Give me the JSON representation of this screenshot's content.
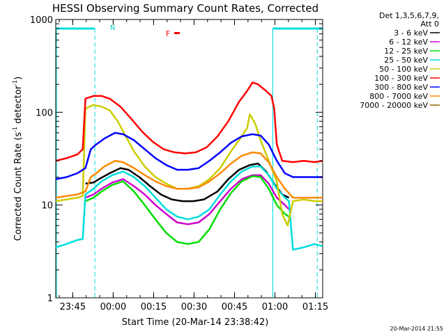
{
  "chart_data": {
    "type": "line",
    "title": "HESSI Observing Summary Count Rates, Corrected",
    "xlabel": "Start Time (20-Mar-14 23:38:42)",
    "ylabel_main": "Corrected Count Rate (s",
    "ylabel_sup1": "-1",
    "ylabel_mid": " detector",
    "ylabel_sup2": "-1",
    "ylabel_end": ")",
    "y_scale": "log",
    "ylim": [
      1,
      1000
    ],
    "x_range_minutes": [
      0,
      99
    ],
    "xtick_labels": [
      "23:45",
      "00:00",
      "00:15",
      "00:30",
      "00:45",
      "01:00",
      "01:15"
    ],
    "xtick_minutes": [
      6.3,
      21.3,
      36.3,
      51.3,
      66.3,
      81.3,
      96.3
    ],
    "ytick_labels": [
      "1",
      "10",
      "100",
      "1000"
    ],
    "ytick_values": [
      1,
      10,
      100,
      1000
    ],
    "legend_header_1": "Det 1,3,5,6,7,9,",
    "legend_header_2": "Att 0",
    "legend_position": "right",
    "timestamp": "20-Mar-2014 21:55",
    "flag_labels": {
      "N": "N",
      "F": "F"
    },
    "night_intervals": [
      [
        0,
        14.5
      ],
      [
        80.5,
        99
      ]
    ],
    "dashed_lines_minutes": [
      14.5,
      80.5,
      97
    ],
    "series": [
      {
        "name": "3 - 6 keV",
        "color": "#000000",
        "points": [
          [
            11,
            17
          ],
          [
            14,
            17.5
          ],
          [
            16,
            19
          ],
          [
            20,
            22
          ],
          [
            24,
            25
          ],
          [
            27,
            24
          ],
          [
            31,
            20
          ],
          [
            35,
            16
          ],
          [
            39,
            13
          ],
          [
            43,
            11.5
          ],
          [
            47,
            11
          ],
          [
            51,
            11
          ],
          [
            55,
            11.5
          ],
          [
            60,
            14
          ],
          [
            64,
            19
          ],
          [
            68,
            24
          ],
          [
            72,
            27
          ],
          [
            75,
            28
          ],
          [
            78,
            23
          ],
          [
            81,
            17
          ],
          [
            84,
            13
          ],
          [
            86.5,
            12
          ]
        ]
      },
      {
        "name": "6 - 12 keV",
        "color": "#cc00cc",
        "points": [
          [
            11,
            12
          ],
          [
            14,
            13
          ],
          [
            17,
            15
          ],
          [
            21,
            17.5
          ],
          [
            25,
            19
          ],
          [
            29,
            16
          ],
          [
            33,
            13
          ],
          [
            37,
            10
          ],
          [
            41,
            8
          ],
          [
            45,
            6.5
          ],
          [
            49,
            6.2
          ],
          [
            53,
            6.5
          ],
          [
            57,
            8
          ],
          [
            61,
            11
          ],
          [
            65,
            15
          ],
          [
            69,
            19
          ],
          [
            73,
            21
          ],
          [
            76,
            21
          ],
          [
            79,
            17
          ],
          [
            82,
            12
          ],
          [
            85,
            10
          ],
          [
            86.5,
            9
          ]
        ]
      },
      {
        "name": "12 - 25 keV",
        "color": "#00dd00",
        "points": [
          [
            11,
            11
          ],
          [
            14,
            12
          ],
          [
            17,
            14
          ],
          [
            21,
            16.5
          ],
          [
            25,
            18
          ],
          [
            29,
            14
          ],
          [
            33,
            10
          ],
          [
            37,
            7
          ],
          [
            41,
            5
          ],
          [
            45,
            4
          ],
          [
            49,
            3.8
          ],
          [
            53,
            4
          ],
          [
            57,
            5.5
          ],
          [
            61,
            9
          ],
          [
            65,
            13.5
          ],
          [
            69,
            18
          ],
          [
            73,
            20.5
          ],
          [
            76,
            20
          ],
          [
            79,
            15
          ],
          [
            82,
            10
          ],
          [
            85,
            8
          ],
          [
            86.5,
            7.5
          ]
        ]
      },
      {
        "name": "25 - 50 keV",
        "color": "#00dddd",
        "points": [
          [
            0,
            3.5
          ],
          [
            4,
            3.8
          ],
          [
            8,
            4.2
          ],
          [
            10,
            4.3
          ],
          [
            11,
            13
          ],
          [
            14,
            15
          ],
          [
            17,
            18
          ],
          [
            21,
            21
          ],
          [
            25,
            23
          ],
          [
            29,
            20
          ],
          [
            33,
            16
          ],
          [
            37,
            12
          ],
          [
            41,
            9
          ],
          [
            45,
            7.5
          ],
          [
            49,
            7
          ],
          [
            53,
            7.5
          ],
          [
            57,
            9
          ],
          [
            61,
            13
          ],
          [
            65,
            18
          ],
          [
            69,
            23
          ],
          [
            73,
            26
          ],
          [
            76,
            26
          ],
          [
            79,
            21
          ],
          [
            82,
            15
          ],
          [
            85,
            12
          ],
          [
            86.5,
            11
          ],
          [
            88,
            3.3
          ],
          [
            92,
            3.5
          ],
          [
            96,
            3.8
          ],
          [
            99,
            3.6
          ]
        ]
      },
      {
        "name": "50 - 100 keV",
        "color": "#cccc00",
        "points": [
          [
            0,
            11
          ],
          [
            4,
            11.5
          ],
          [
            8,
            12
          ],
          [
            10,
            12.5
          ],
          [
            11,
            110
          ],
          [
            14,
            120
          ],
          [
            17,
            115
          ],
          [
            20,
            105
          ],
          [
            23,
            80
          ],
          [
            26,
            55
          ],
          [
            29,
            38
          ],
          [
            33,
            26
          ],
          [
            37,
            20
          ],
          [
            41,
            17
          ],
          [
            45,
            15
          ],
          [
            49,
            15
          ],
          [
            53,
            16
          ],
          [
            57,
            19
          ],
          [
            61,
            25
          ],
          [
            65,
            38
          ],
          [
            69,
            55
          ],
          [
            71,
            68
          ],
          [
            72,
            95
          ],
          [
            74,
            75
          ],
          [
            76,
            50
          ],
          [
            79,
            30
          ],
          [
            82,
            18
          ],
          [
            84,
            8
          ],
          [
            86,
            6
          ],
          [
            88,
            11
          ],
          [
            92,
            11.5
          ],
          [
            96,
            11
          ],
          [
            99,
            11
          ]
        ]
      },
      {
        "name": "100 - 300 keV",
        "color": "#ff0000",
        "points": [
          [
            0,
            30
          ],
          [
            4,
            32
          ],
          [
            8,
            35
          ],
          [
            10,
            40
          ],
          [
            11,
            140
          ],
          [
            14,
            150
          ],
          [
            17,
            150
          ],
          [
            20,
            140
          ],
          [
            24,
            115
          ],
          [
            28,
            85
          ],
          [
            32,
            62
          ],
          [
            36,
            48
          ],
          [
            40,
            40
          ],
          [
            44,
            37
          ],
          [
            48,
            36
          ],
          [
            52,
            37
          ],
          [
            56,
            42
          ],
          [
            60,
            55
          ],
          [
            64,
            80
          ],
          [
            68,
            130
          ],
          [
            71,
            170
          ],
          [
            73,
            210
          ],
          [
            75,
            200
          ],
          [
            78,
            170
          ],
          [
            80,
            150
          ],
          [
            81,
            110
          ],
          [
            82,
            45
          ],
          [
            84,
            30
          ],
          [
            88,
            29
          ],
          [
            92,
            30
          ],
          [
            96,
            29
          ],
          [
            99,
            30
          ]
        ]
      },
      {
        "name": "300 - 800 keV",
        "color": "#0000ff",
        "points": [
          [
            0,
            19
          ],
          [
            4,
            20
          ],
          [
            8,
            22
          ],
          [
            11,
            25
          ],
          [
            13,
            40
          ],
          [
            15,
            45
          ],
          [
            18,
            52
          ],
          [
            22,
            60
          ],
          [
            25,
            58
          ],
          [
            29,
            50
          ],
          [
            33,
            40
          ],
          [
            37,
            32
          ],
          [
            41,
            27
          ],
          [
            45,
            24
          ],
          [
            49,
            24
          ],
          [
            53,
            25
          ],
          [
            57,
            30
          ],
          [
            61,
            37
          ],
          [
            65,
            47
          ],
          [
            69,
            55
          ],
          [
            73,
            58
          ],
          [
            76,
            56
          ],
          [
            79,
            45
          ],
          [
            82,
            30
          ],
          [
            85,
            22
          ],
          [
            88,
            20
          ],
          [
            92,
            20
          ],
          [
            96,
            20
          ],
          [
            99,
            20
          ]
        ]
      },
      {
        "name": "800 - 7000 keV",
        "color": "#ff8800",
        "points": [
          [
            0,
            12
          ],
          [
            4,
            12.5
          ],
          [
            8,
            13
          ],
          [
            11,
            14
          ],
          [
            13,
            20
          ],
          [
            15,
            22
          ],
          [
            18,
            26
          ],
          [
            22,
            30
          ],
          [
            25,
            29
          ],
          [
            29,
            25
          ],
          [
            33,
            21
          ],
          [
            37,
            18
          ],
          [
            41,
            16
          ],
          [
            45,
            15
          ],
          [
            49,
            15
          ],
          [
            53,
            15.5
          ],
          [
            57,
            18
          ],
          [
            61,
            22
          ],
          [
            65,
            28
          ],
          [
            69,
            34
          ],
          [
            73,
            37
          ],
          [
            76,
            36
          ],
          [
            79,
            29
          ],
          [
            82,
            20
          ],
          [
            85,
            15
          ],
          [
            88,
            12
          ],
          [
            92,
            12
          ],
          [
            96,
            12
          ],
          [
            99,
            12
          ]
        ]
      },
      {
        "name": "7000 - 20000 keV",
        "color": "#996600",
        "points": []
      }
    ]
  }
}
